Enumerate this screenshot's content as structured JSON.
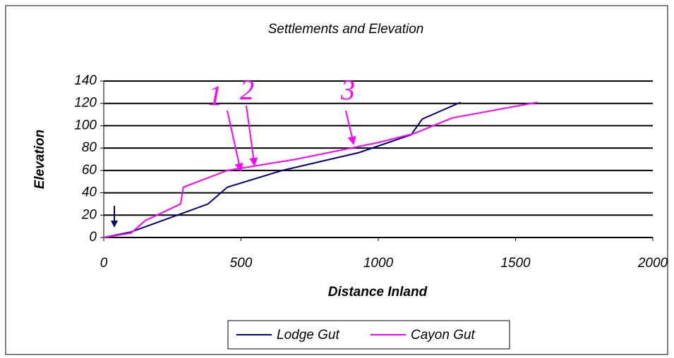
{
  "chart_data": {
    "type": "line",
    "title": "Settlements and Elevation",
    "x_label": "Distance Inland",
    "y_label": "Elevation",
    "xlim": [
      0,
      2000
    ],
    "xticks": [
      0,
      500,
      1000,
      1500,
      2000
    ],
    "ylim": [
      0,
      140
    ],
    "yticks": [
      0,
      20,
      40,
      60,
      80,
      100,
      120,
      140
    ],
    "grid": true,
    "legend": "bottom",
    "annotations": [
      "1",
      "2",
      "3"
    ],
    "series": [
      {
        "name": "Lodge Gut",
        "color": "#000080",
        "x": [
          0,
          100,
          380,
          450,
          650,
          930,
          1120,
          1160,
          1300
        ],
        "values": [
          0,
          5,
          30,
          45,
          60,
          76,
          92,
          106,
          121
        ]
      },
      {
        "name": "Cayon Gut",
        "color": "#ff00ff",
        "x": [
          0,
          100,
          150,
          280,
          290,
          450,
          700,
          1000,
          1130,
          1270,
          1580
        ],
        "values": [
          0,
          4,
          15,
          30,
          45,
          60,
          70,
          85,
          93,
          107,
          121
        ]
      }
    ]
  }
}
